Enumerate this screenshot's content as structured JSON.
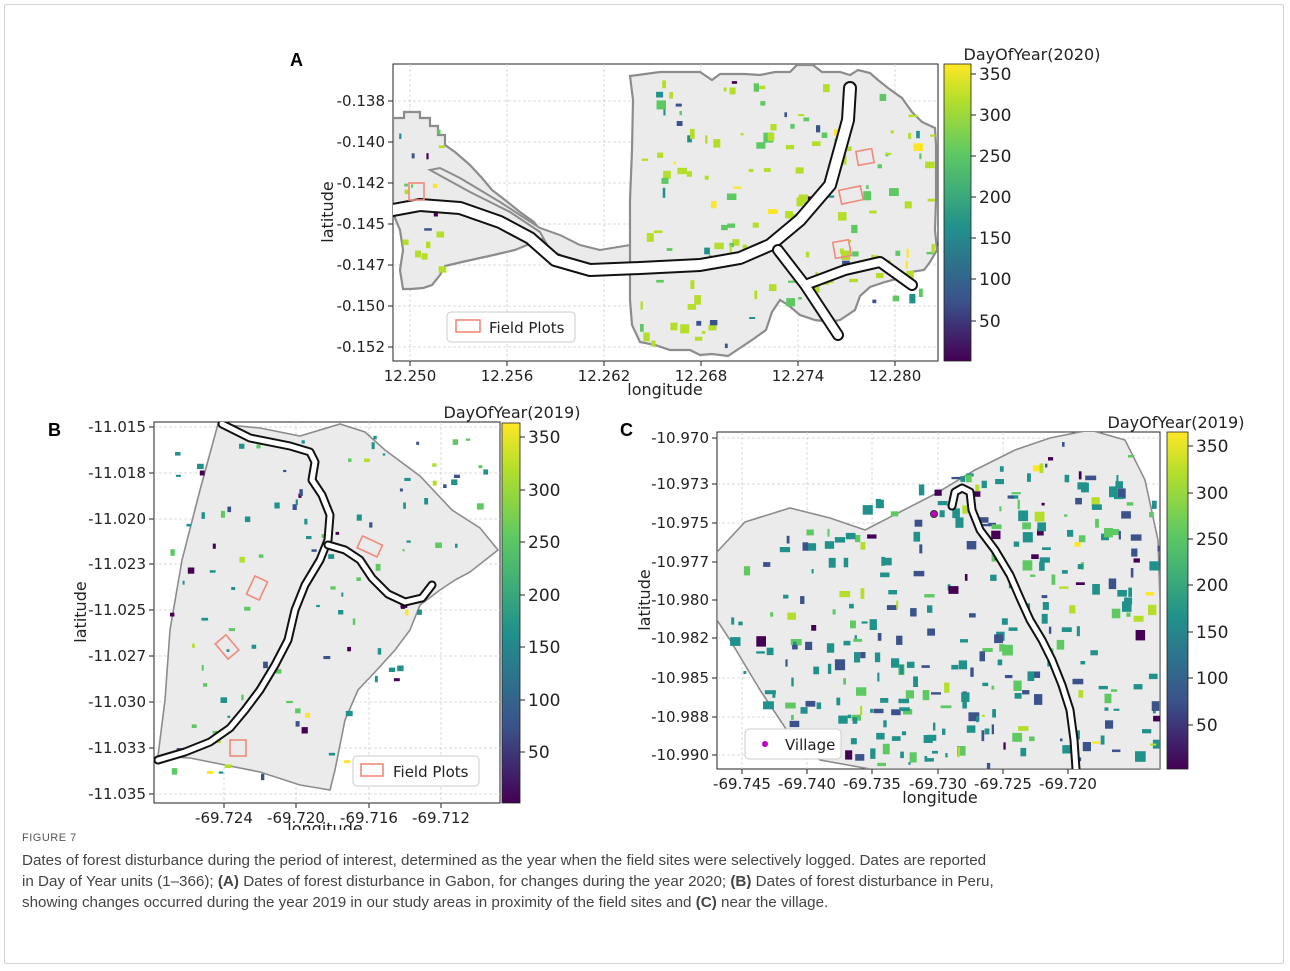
{
  "panels": [
    {
      "id": "A",
      "letter": "A",
      "colorbar_title": "DayOfYear(2020)",
      "xlabel": "longitude",
      "ylabel": "latitude",
      "xticks": [
        "12.250",
        "12.256",
        "12.262",
        "12.268",
        "12.274",
        "12.280"
      ],
      "yticks": [
        "-0.138",
        "-0.140",
        "-0.142",
        "-0.145",
        "-0.147",
        "-0.150",
        "-0.152"
      ],
      "cbar_ticks": [
        "350",
        "300",
        "250",
        "200",
        "150",
        "100",
        "50"
      ],
      "legend_label": "Field Plots"
    },
    {
      "id": "B",
      "letter": "B",
      "colorbar_title": "DayOfYear(2019)",
      "xlabel": "longitude",
      "ylabel": "latitude",
      "xticks": [
        "-69.724",
        "-69.720",
        "-69.716",
        "-69.712"
      ],
      "yticks": [
        "-11.015",
        "-11.018",
        "-11.020",
        "-11.023",
        "-11.025",
        "-11.027",
        "-11.030",
        "-11.033",
        "-11.035"
      ],
      "cbar_ticks": [
        "350",
        "300",
        "250",
        "200",
        "150",
        "100",
        "50"
      ],
      "legend_label": "Field Plots"
    },
    {
      "id": "C",
      "letter": "C",
      "colorbar_title": "DayOfYear(2019)",
      "xlabel": "longitude",
      "ylabel": "latitude",
      "xticks": [
        "-69.745",
        "-69.740",
        "-69.735",
        "-69.730",
        "-69.725",
        "-69.720"
      ],
      "yticks": [
        "-10.970",
        "-10.973",
        "-10.975",
        "-10.977",
        "-10.980",
        "-10.982",
        "-10.985",
        "-10.988",
        "-10.990"
      ],
      "cbar_ticks": [
        "350",
        "300",
        "250",
        "200",
        "150",
        "100",
        "50"
      ],
      "legend_label": "Village"
    }
  ],
  "colors": {
    "area_fill": "#ebebeb",
    "area_edge": "#8c8c8c",
    "road": "#111111",
    "field_plot": "#f08a7a",
    "village": "#c000c0",
    "viridis": [
      "#440154",
      "#3b528b",
      "#21918c",
      "#5ec962",
      "#b5de2b",
      "#fde725"
    ]
  },
  "caption": {
    "label": "FIGURE 7",
    "line1": "Dates of forest disturbance during the period of interest, determined as the year when the field sites were selectively logged. Dates are reported",
    "line2_pre": "in Day of Year units (1–366); ",
    "line2_a": "(A)",
    "line2_mid": " Dates of forest disturbance in Gabon, for changes during the year 2020; ",
    "line2_b": "(B)",
    "line2_post": " Dates of forest disturbance in Peru,",
    "line3_pre": "showing changes occurred during the year 2019 in our study areas in proximity of the field sites and ",
    "line3_c": "(C)",
    "line3_post": " near the village."
  }
}
